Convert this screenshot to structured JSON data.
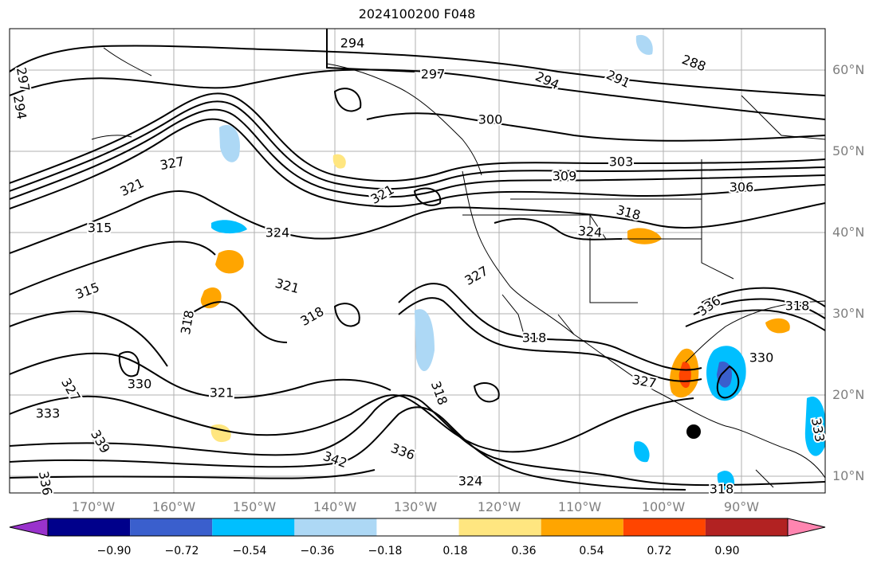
{
  "title": "2024100200 F048",
  "latitude_labels": [
    "60°N",
    "50°N",
    "40°N",
    "30°N",
    "20°N",
    "10°N"
  ],
  "longitude_labels": [
    "170°W",
    "160°W",
    "150°W",
    "140°W",
    "130°W",
    "120°W",
    "110°W",
    "100°W",
    "90°W"
  ],
  "colorbar": {
    "tick_labels": [
      "−0.90",
      "−0.72",
      "−0.54",
      "−0.36",
      "−0.18",
      "0.18",
      "0.36",
      "0.54",
      "0.72",
      "0.90"
    ],
    "colors": [
      "#9932cc",
      "#00008b",
      "#3a5fcd",
      "#00bfff",
      "#add8f5",
      "#ffffff",
      "#ffe680",
      "#ffa500",
      "#ff4500",
      "#b22222",
      "#ff85b0"
    ]
  },
  "contour_labels": [
    "294",
    "297",
    "288",
    "294",
    "291",
    "297",
    "294",
    "300",
    "303",
    "309",
    "306",
    "318",
    "324",
    "327",
    "321",
    "324",
    "315",
    "321",
    "318",
    "327",
    "321",
    "315",
    "318",
    "321",
    "318",
    "318",
    "327",
    "336",
    "318",
    "330",
    "333",
    "336",
    "342",
    "339",
    "333",
    "327",
    "336",
    "330",
    "324",
    "318"
  ],
  "colors": {
    "contour": "#000000",
    "grid": "#b0b0b0",
    "coast": "#000000",
    "axis_label": "#7f7f7f"
  },
  "marker": "storm-position-dot"
}
